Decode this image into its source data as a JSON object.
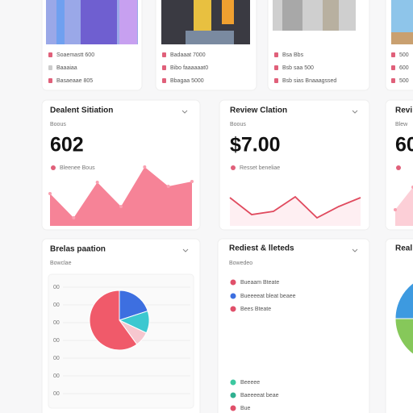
{
  "top_cards": [
    {
      "items": [
        "Soaemastt 600",
        "Baaaiaa",
        "Basaeaae 805"
      ]
    },
    {
      "items": [
        "Badaaat 7000",
        "Bibo faaaaaat0",
        "Bbagaa 5000"
      ]
    },
    {
      "items": [
        "Bsa Bbs",
        "Bsb saa 500",
        "Bsb sias Bnaaagssed"
      ]
    },
    {
      "items": [
        "500",
        "600",
        "500"
      ]
    }
  ],
  "stats": [
    {
      "title": "Dealent Sitiation",
      "subtitle": "Boous",
      "value": "602",
      "legend": "Bleenee Bous",
      "values": [
        40,
        10,
        54,
        24,
        73,
        49,
        55
      ]
    },
    {
      "title": "Review Clation",
      "subtitle": "Boous",
      "value": "$7.00",
      "legend": "Resset beneliae",
      "values": [
        35,
        14,
        18,
        36,
        10,
        24,
        35
      ]
    },
    {
      "title": "Revi",
      "subtitle": "Blew",
      "value": "60",
      "legend": "",
      "values": [
        20,
        48
      ]
    }
  ],
  "bottom": [
    {
      "title": "Brelas paation",
      "subtitle": "Bowclae",
      "axis": [
        "00",
        "00",
        "00",
        "00",
        "00",
        "00",
        "00"
      ],
      "slices": [
        20,
        12,
        8,
        60
      ]
    },
    {
      "title": "Rediest & lleteds",
      "subtitle": "Bowedeo",
      "legend": [
        "Bueaam Bteate",
        "Bueeeeat bleat beaee",
        "Bees Bteate",
        "Beeeee",
        "Baeeeeat beae",
        "Bue"
      ]
    },
    {
      "title": "Real",
      "slices": [
        40,
        35,
        25
      ]
    }
  ]
}
